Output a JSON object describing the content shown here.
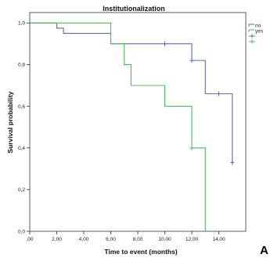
{
  "chart_data": {
    "type": "line",
    "subtype": "kaplan-meier step",
    "title": "Institutionalization",
    "xlabel": "Time to event (months)",
    "ylabel": "Survival probability",
    "xlim": [
      0,
      16
    ],
    "ylim": [
      0,
      1.05
    ],
    "x_ticks": [
      0,
      2,
      4,
      6,
      8,
      10,
      12,
      14
    ],
    "x_tick_labels": [
      ",00",
      "2,00",
      "4,00",
      "6,00",
      "8,00",
      "10,00",
      "12,00",
      "14,00"
    ],
    "y_ticks": [
      0,
      0.2,
      0.4,
      0.6,
      0.8,
      1.0
    ],
    "y_tick_labels": [
      "0,0",
      "0,2",
      "0,4",
      "0,6",
      "0,8",
      "1,0"
    ],
    "grid": false,
    "legend_position": "top-right",
    "series": [
      {
        "name": "no",
        "color": "#5b6bb0",
        "x": [
          0,
          2,
          2.5,
          6,
          12,
          13,
          15
        ],
        "y": [
          1.0,
          0.975,
          0.95,
          0.9,
          0.82,
          0.66,
          0.33
        ],
        "end_x": 15,
        "censored": [
          {
            "x": 10,
            "y": 0.9
          },
          {
            "x": 12,
            "y": 0.82
          },
          {
            "x": 14,
            "y": 0.66
          },
          {
            "x": 15,
            "y": 0.33
          }
        ]
      },
      {
        "name": "yes",
        "color": "#4dbb5f",
        "x": [
          0,
          6,
          7,
          7.5,
          10,
          12,
          13
        ],
        "y": [
          1.0,
          0.9,
          0.8,
          0.7,
          0.6,
          0.4,
          0.0
        ],
        "end_x": 13,
        "censored": [
          {
            "x": 12,
            "y": 0.4
          }
        ]
      }
    ],
    "legend_censor_entries": [
      {
        "color": "#5b6bb0",
        "symbol": "cross"
      },
      {
        "color": "#4dbb5f",
        "symbol": "cross"
      }
    ]
  },
  "panel_label": "A"
}
